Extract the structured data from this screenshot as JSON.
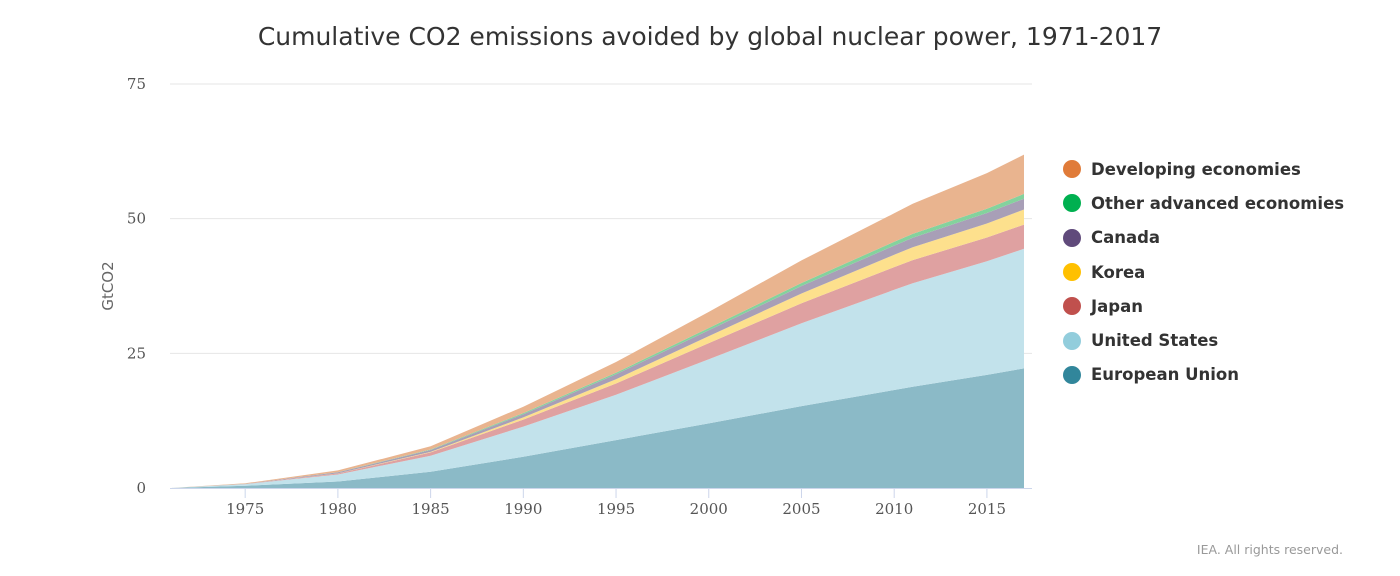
{
  "chart_data": {
    "type": "area",
    "stacked": true,
    "title": "Cumulative CO2 emissions avoided by global nuclear power, 1971-2017",
    "xlabel": "",
    "ylabel": "GtCO2",
    "xlim": [
      1971,
      2017
    ],
    "ylim": [
      0,
      75
    ],
    "x_ticks": [
      1975,
      1980,
      1985,
      1990,
      1995,
      2000,
      2005,
      2010,
      2015
    ],
    "y_ticks": [
      0,
      25,
      50,
      75
    ],
    "x": [
      1971,
      1975,
      1980,
      1985,
      1990,
      1995,
      2000,
      2005,
      2010,
      2011,
      2015,
      2017
    ],
    "series": [
      {
        "name": "European Union",
        "color": "#31869b",
        "fill": "#8bbac7",
        "values": [
          0,
          0.4,
          1.2,
          3.0,
          5.8,
          8.9,
          12.0,
          15.2,
          18.2,
          18.8,
          21.0,
          22.2
        ]
      },
      {
        "name": "United States",
        "color": "#92cddc",
        "fill": "#c2e2eb",
        "values": [
          0,
          0.3,
          1.3,
          3.0,
          5.6,
          8.4,
          11.9,
          15.4,
          18.6,
          19.2,
          21.1,
          22.2
        ]
      },
      {
        "name": "Japan",
        "color": "#c0504d",
        "fill": "#dfa1a1",
        "values": [
          0,
          0.04,
          0.2,
          0.6,
          1.3,
          2.1,
          3.0,
          3.7,
          4.2,
          4.3,
          4.4,
          4.5
        ]
      },
      {
        "name": "Korea",
        "color": "#ffc000",
        "fill": "#fde08d",
        "values": [
          0,
          0,
          0.01,
          0.1,
          0.4,
          0.8,
          1.3,
          1.8,
          2.3,
          2.4,
          2.6,
          2.8
        ]
      },
      {
        "name": "Canada",
        "color": "#604a7b",
        "fill": "#a89fb7",
        "values": [
          0,
          0.03,
          0.2,
          0.35,
          0.6,
          0.9,
          1.1,
          1.4,
          1.7,
          1.75,
          1.95,
          2.0
        ]
      },
      {
        "name": "Other advanced economies",
        "color": "#00b050",
        "fill": "#84d29d",
        "values": [
          0,
          0.01,
          0.05,
          0.1,
          0.2,
          0.3,
          0.4,
          0.55,
          0.7,
          0.72,
          0.8,
          0.9
        ]
      },
      {
        "name": "Developing economies",
        "color": "#e07b39",
        "fill": "#e9b48f",
        "values": [
          0,
          0.1,
          0.3,
          0.6,
          1.2,
          2.0,
          3.0,
          4.2,
          5.3,
          5.6,
          6.6,
          7.3
        ]
      }
    ]
  },
  "credit": "IEA. All rights reserved."
}
